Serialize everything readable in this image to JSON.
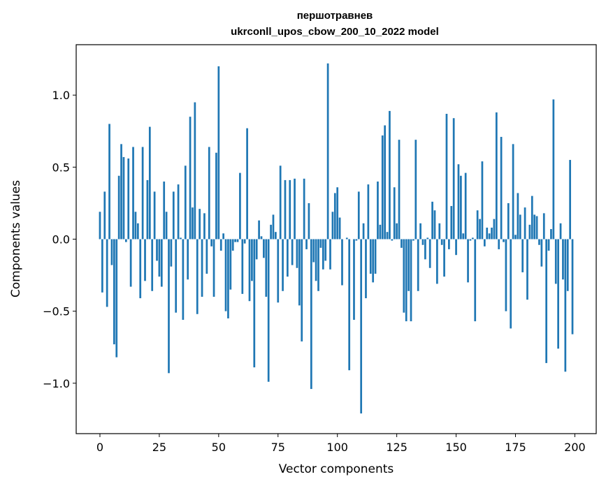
{
  "chart_data": {
    "type": "bar",
    "title_line1": "першотравнев",
    "title_line2": "ukrconll_upos_cbow_200_10_2022 model",
    "xlabel": "Vector components",
    "ylabel": "Components values",
    "xlim": [
      -10,
      209
    ],
    "ylim": [
      -1.35,
      1.35
    ],
    "xticks": [
      0,
      25,
      50,
      75,
      100,
      125,
      150,
      175,
      200
    ],
    "xtick_labels": [
      "0",
      "25",
      "50",
      "75",
      "100",
      "125",
      "150",
      "175",
      "200"
    ],
    "yticks": [
      -1.0,
      -0.5,
      0.0,
      0.5,
      1.0
    ],
    "ytick_labels": [
      "−1.0",
      "−0.5",
      "0.0",
      "0.5",
      "1.0"
    ],
    "bar_color": "#1f77b4",
    "values": [
      0.19,
      -0.37,
      0.33,
      -0.47,
      0.8,
      -0.18,
      -0.73,
      -0.82,
      0.44,
      0.66,
      0.57,
      -0.02,
      0.56,
      -0.33,
      0.64,
      0.19,
      0.11,
      -0.41,
      0.64,
      -0.29,
      0.41,
      0.78,
      -0.36,
      0.33,
      -0.15,
      -0.26,
      -0.33,
      0.4,
      0.19,
      -0.93,
      -0.19,
      0.33,
      -0.51,
      0.38,
      0.01,
      -0.56,
      0.51,
      -0.28,
      0.85,
      0.22,
      0.95,
      -0.52,
      0.21,
      -0.4,
      0.18,
      -0.24,
      0.64,
      -0.05,
      -0.4,
      0.6,
      1.2,
      -0.08,
      0.04,
      -0.5,
      -0.55,
      -0.35,
      -0.08,
      -0.02,
      -0.02,
      0.46,
      -0.38,
      -0.03,
      0.77,
      -0.43,
      -0.29,
      -0.89,
      -0.14,
      0.13,
      0.02,
      -0.13,
      -0.4,
      -0.99,
      0.1,
      0.17,
      0.05,
      -0.44,
      0.51,
      -0.36,
      0.41,
      -0.26,
      0.41,
      -0.18,
      0.42,
      -0.2,
      -0.46,
      -0.71,
      0.42,
      -0.07,
      0.25,
      -1.04,
      -0.16,
      -0.29,
      -0.36,
      -0.06,
      -0.21,
      -0.15,
      1.22,
      -0.21,
      0.19,
      0.32,
      0.36,
      0.15,
      -0.32,
      0.0,
      0.01,
      -0.91,
      0.0,
      -0.56,
      -0.01,
      0.33,
      -1.21,
      0.11,
      -0.41,
      0.38,
      -0.24,
      -0.3,
      -0.24,
      0.4,
      0.1,
      0.72,
      0.79,
      0.05,
      0.89,
      -0.01,
      0.36,
      0.11,
      0.69,
      -0.06,
      -0.51,
      -0.57,
      -0.36,
      -0.57,
      -0.01,
      0.69,
      -0.36,
      0.11,
      -0.04,
      -0.14,
      0.01,
      -0.2,
      0.26,
      0.2,
      -0.31,
      0.11,
      -0.04,
      -0.26,
      0.87,
      -0.07,
      0.23,
      0.84,
      -0.11,
      0.52,
      0.44,
      0.04,
      0.46,
      -0.3,
      -0.01,
      0.01,
      -0.57,
      0.2,
      0.14,
      0.54,
      -0.05,
      0.08,
      0.04,
      0.08,
      0.14,
      0.88,
      -0.07,
      0.71,
      -0.02,
      -0.5,
      0.25,
      -0.62,
      0.66,
      0.03,
      0.32,
      0.17,
      -0.23,
      0.22,
      -0.42,
      0.1,
      0.3,
      0.17,
      0.16,
      -0.04,
      -0.19,
      0.18,
      -0.86,
      -0.08,
      0.07,
      0.97,
      -0.31,
      -0.76,
      0.11,
      -0.28,
      -0.92,
      -0.36,
      0.55,
      -0.66
    ]
  }
}
